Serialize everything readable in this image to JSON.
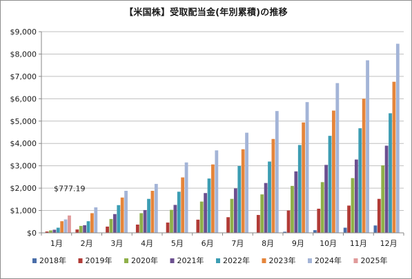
{
  "chart_data": {
    "type": "bar",
    "title": "【米国株】受取配当金(年別累積)の推移",
    "xlabel": "",
    "ylabel": "",
    "ylim": [
      0,
      9000
    ],
    "ytick_labels": [
      "$0",
      "$1,000",
      "$2,000",
      "$3,000",
      "$4,000",
      "$5,000",
      "$6,000",
      "$7,000",
      "$8,000",
      "$9,000"
    ],
    "categories": [
      "1月",
      "2月",
      "3月",
      "4月",
      "5月",
      "6月",
      "7月",
      "8月",
      "9月",
      "10月",
      "11月",
      "12月"
    ],
    "grid": true,
    "legend_position": "bottom",
    "series": [
      {
        "name": "2018年",
        "color": "#4a6ea9",
        "values": [
          0,
          0,
          0,
          0,
          0,
          0,
          0,
          0,
          50,
          120,
          230,
          330
        ]
      },
      {
        "name": "2019年",
        "color": "#b13b36",
        "values": [
          60,
          150,
          280,
          370,
          460,
          590,
          700,
          800,
          1000,
          1080,
          1220,
          1520
        ]
      },
      {
        "name": "2020年",
        "color": "#8fb04a",
        "values": [
          110,
          310,
          620,
          880,
          1030,
          1400,
          1520,
          1720,
          2100,
          2270,
          2450,
          3020
        ]
      },
      {
        "name": "2021年",
        "color": "#6b4f8f",
        "values": [
          140,
          340,
          840,
          1020,
          1250,
          1780,
          1990,
          2230,
          2750,
          3040,
          3280,
          3900
        ]
      },
      {
        "name": "2022年",
        "color": "#3c9db3",
        "values": [
          230,
          520,
          1240,
          1520,
          1840,
          2430,
          2990,
          3190,
          3930,
          4340,
          4680,
          5350
        ]
      },
      {
        "name": "2023年",
        "color": "#e5853b",
        "values": [
          520,
          880,
          1580,
          1880,
          2480,
          3060,
          3740,
          4200,
          4940,
          5470,
          6000,
          6760
        ]
      },
      {
        "name": "2024年",
        "color": "#a3b4d7",
        "values": [
          600,
          1140,
          1880,
          2190,
          3150,
          3690,
          4480,
          5450,
          5850,
          6700,
          7720,
          8460
        ]
      },
      {
        "name": "2025年",
        "color": "#e09a9a",
        "values": [
          777.19,
          null,
          null,
          null,
          null,
          null,
          null,
          null,
          null,
          null,
          null,
          null
        ]
      }
    ],
    "annotations": [
      {
        "text": "$777.19",
        "category": "1月"
      }
    ]
  }
}
